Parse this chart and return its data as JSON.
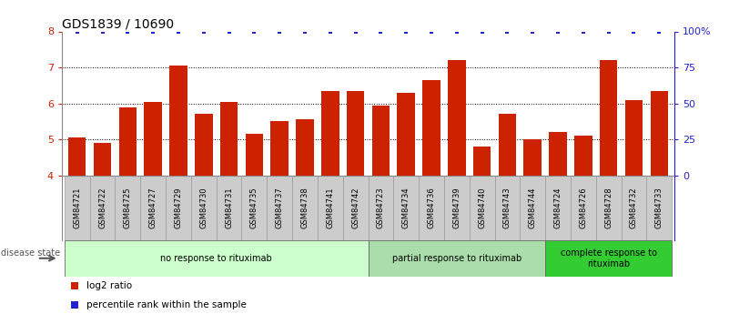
{
  "title": "GDS1839 / 10690",
  "samples": [
    "GSM84721",
    "GSM84722",
    "GSM84725",
    "GSM84727",
    "GSM84729",
    "GSM84730",
    "GSM84731",
    "GSM84735",
    "GSM84737",
    "GSM84738",
    "GSM84741",
    "GSM84742",
    "GSM84723",
    "GSM84734",
    "GSM84736",
    "GSM84739",
    "GSM84740",
    "GSM84743",
    "GSM84744",
    "GSM84724",
    "GSM84726",
    "GSM84728",
    "GSM84732",
    "GSM84733"
  ],
  "values": [
    5.05,
    4.9,
    5.9,
    6.05,
    7.05,
    5.7,
    6.05,
    5.15,
    5.5,
    5.55,
    6.35,
    6.35,
    5.95,
    6.3,
    6.65,
    7.2,
    4.8,
    5.7,
    5.0,
    5.2,
    5.1,
    7.2,
    6.1,
    6.35
  ],
  "bar_color": "#cc2200",
  "percentile_color": "#2222cc",
  "ylim_data": [
    4,
    8
  ],
  "yticks_left": [
    4,
    5,
    6,
    7,
    8
  ],
  "yticks_right_labels": [
    "0",
    "25",
    "50",
    "75",
    "100%"
  ],
  "groups": [
    {
      "label": "no response to rituximab",
      "start": 0,
      "end": 12,
      "color": "#ccffcc"
    },
    {
      "label": "partial response to rituximab",
      "start": 12,
      "end": 19,
      "color": "#aaddaa"
    },
    {
      "label": "complete response to\nrituximab",
      "start": 19,
      "end": 24,
      "color": "#33cc33"
    }
  ],
  "disease_state_label": "disease state",
  "legend_red_label": "log2 ratio",
  "legend_blue_label": "percentile rank within the sample",
  "background_color": "#ffffff",
  "left_tick_color": "#cc2200",
  "right_tick_color": "#2222cc",
  "title_fontsize": 10,
  "bar_width": 0.7,
  "xlabel_gray_bg": "#cccccc",
  "xlabel_gray_edge": "#999999"
}
